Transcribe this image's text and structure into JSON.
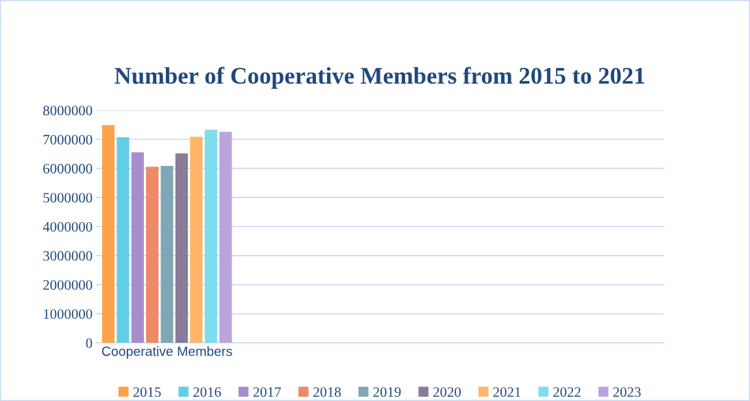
{
  "chart_data": {
    "type": "bar",
    "title": "Number of Cooperative Members from 2015 to 2021",
    "categories": [
      "Cooperative Members",
      null,
      null,
      null
    ],
    "series": [
      {
        "name": "2015",
        "color": "#fda24a",
        "values": [
          7490000,
          null,
          null,
          null
        ]
      },
      {
        "name": "2016",
        "color": "#62cde6",
        "values": [
          7070000,
          null,
          null,
          null
        ]
      },
      {
        "name": "2017",
        "color": "#a88ccc",
        "values": [
          6550000,
          null,
          null,
          null
        ]
      },
      {
        "name": "2018",
        "color": "#ec8a68",
        "values": [
          6060000,
          null,
          null,
          null
        ]
      },
      {
        "name": "2019",
        "color": "#7fa7b6",
        "values": [
          6090000,
          null,
          null,
          null
        ]
      },
      {
        "name": "2020",
        "color": "#8b7a98",
        "values": [
          6520000,
          null,
          null,
          null
        ]
      },
      {
        "name": "2021",
        "color": "#ffb66a",
        "values": [
          7090000,
          null,
          null,
          null
        ]
      },
      {
        "name": "2022",
        "color": "#7edcef",
        "values": [
          7330000,
          null,
          null,
          null
        ]
      },
      {
        "name": "2023",
        "color": "#bba4dc",
        "values": [
          7260000,
          null,
          null,
          null
        ]
      }
    ],
    "ylim": [
      0,
      8000000
    ],
    "yticks": [
      0,
      1000000,
      2000000,
      3000000,
      4000000,
      5000000,
      6000000,
      7000000,
      8000000
    ],
    "grid": "y",
    "legend": "bottom"
  }
}
